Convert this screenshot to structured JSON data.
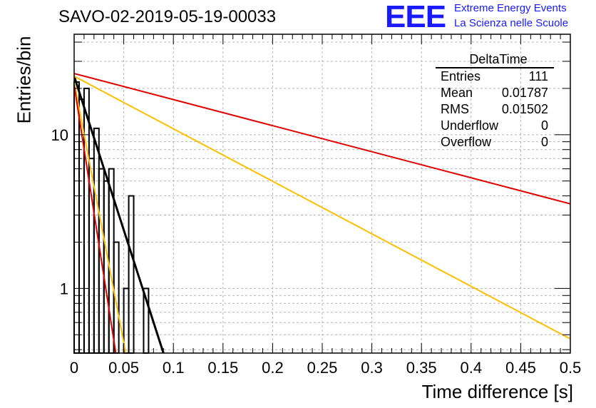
{
  "header": {
    "title": "SAVO-02-2019-05-19-00033"
  },
  "logo": {
    "mark": "EEE",
    "line1": "Extreme Energy Events",
    "line2": "La Scienza nelle Scuole",
    "color": "#1a1aff"
  },
  "stats": {
    "title": "DeltaTime",
    "rows": [
      {
        "label": "Entries",
        "value": "111"
      },
      {
        "label": "Mean",
        "value": "0.01787"
      },
      {
        "label": "RMS",
        "value": "0.01502"
      },
      {
        "label": "Underflow",
        "value": "0"
      },
      {
        "label": "Overflow",
        "value": "0"
      }
    ]
  },
  "chart_data": {
    "type": "bar",
    "title": "SAVO-02-2019-05-19-00033",
    "xlabel": "Time difference [s]",
    "ylabel": "Entries/bin",
    "xlim": [
      0,
      0.5
    ],
    "ylim": [
      0.38,
      45
    ],
    "ylog": true,
    "grid": true,
    "xticks": [
      "0",
      "0.05",
      "0.1",
      "0.15",
      "0.2",
      "0.25",
      "0.3",
      "0.35",
      "0.4",
      "0.45",
      "0.5"
    ],
    "yticks": [
      "1",
      "10"
    ],
    "histogram": {
      "bin_width": 0.005,
      "bin_starts": [
        0,
        0.005,
        0.01,
        0.015,
        0.02,
        0.025,
        0.03,
        0.035,
        0.04,
        0.045,
        0.05,
        0.055,
        0.06,
        0.065,
        0.07,
        0.075
      ],
      "counts": [
        22,
        17,
        20,
        7,
        11,
        6,
        5,
        6,
        2,
        0,
        1,
        4,
        0,
        0,
        1,
        0
      ],
      "color": "#000000"
    },
    "curves": [
      {
        "color": "#000000",
        "x": [
          0,
          0.09
        ],
        "y": [
          24,
          0.38
        ]
      },
      {
        "color": "#ffbf00",
        "x": [
          0,
          0.5
        ],
        "y": [
          24,
          0.47
        ]
      },
      {
        "color": "#e00000",
        "x": [
          0,
          0.5
        ],
        "y": [
          25,
          3.55
        ]
      },
      {
        "color": "#ffbf00",
        "x": [
          0,
          0.052
        ],
        "y": [
          22,
          0.38
        ]
      },
      {
        "color": "#e00000",
        "x": [
          0,
          0.042
        ],
        "y": [
          21,
          0.38
        ]
      }
    ]
  }
}
